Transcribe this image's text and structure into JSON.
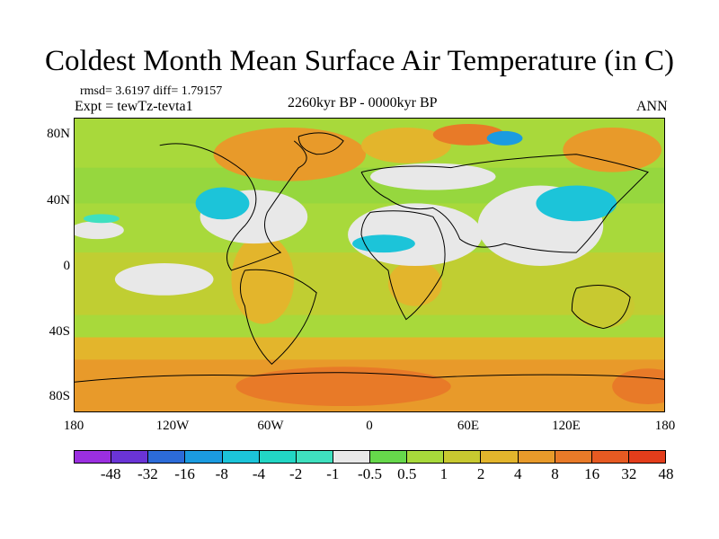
{
  "title": "Coldest Month Mean Surface Air Temperature (in C)",
  "stats": "rmsd= 3.6197 diff= 1.79157",
  "experiment": "Expt = tewTz-tevta1",
  "period": "2260kyr BP - 0000kyr BP",
  "season": "ANN",
  "lat_labels": [
    "80N",
    "40N",
    "0",
    "40S",
    "80S"
  ],
  "lon_labels": [
    "180",
    "120W",
    "60W",
    "0",
    "60E",
    "120E",
    "180"
  ],
  "colorbar": {
    "labels": [
      "-48",
      "-32",
      "-16",
      "-8",
      "-4",
      "-2",
      "-1",
      "-0.5",
      "0.5",
      "1",
      "2",
      "4",
      "8",
      "16",
      "32",
      "48"
    ],
    "colors": [
      "#9b2fe0",
      "#6a34d6",
      "#2c6bd8",
      "#1b9be0",
      "#1cc4d9",
      "#22d6c4",
      "#3fe0bf",
      "#e8e8e8",
      "#66d84b",
      "#a8d93b",
      "#c8c930",
      "#e3b52c",
      "#e89a2a",
      "#e87a28",
      "#e65a22",
      "#e33d1b"
    ]
  }
}
